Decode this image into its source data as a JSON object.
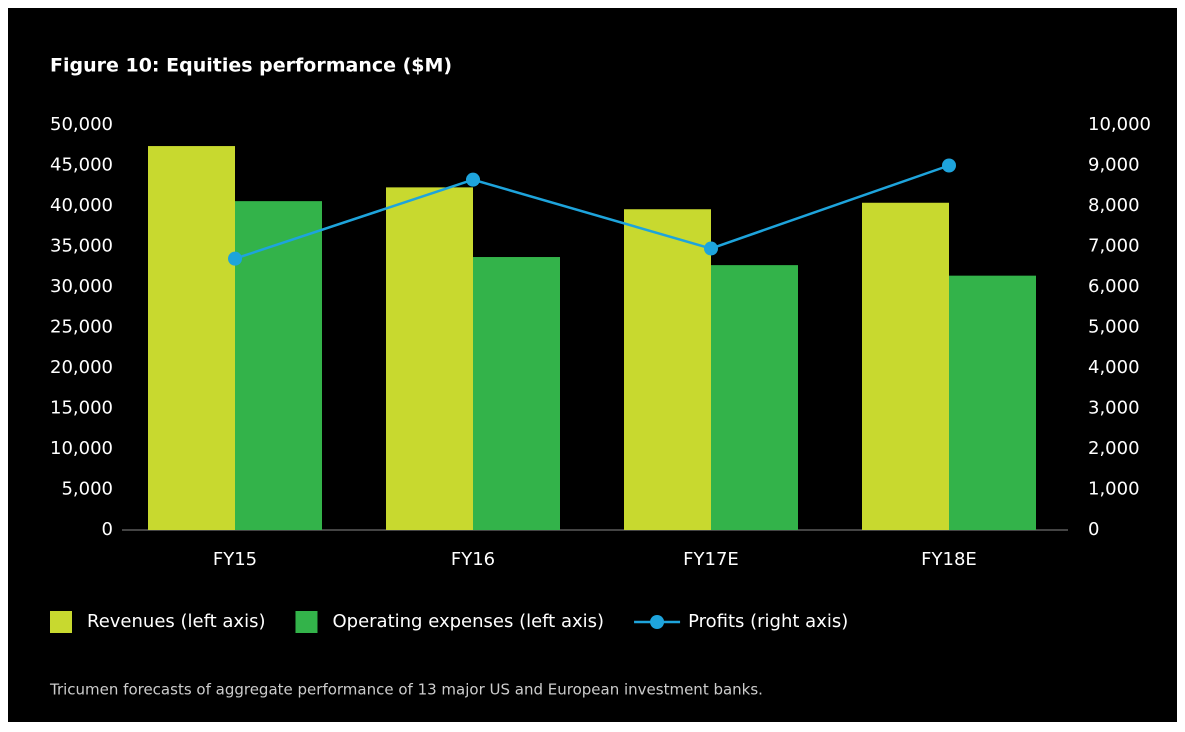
{
  "chart_data": {
    "type": "bar",
    "title": "Figure 10: Equities performance ($M)",
    "categories": [
      "FY15",
      "FY16",
      "FY17E",
      "FY18E"
    ],
    "series": [
      {
        "name": "Revenues (left axis)",
        "type": "bar",
        "color": "#c8d92f",
        "values": [
          47400,
          42300,
          39600,
          40400
        ]
      },
      {
        "name": "Operating expenses (left axis)",
        "type": "bar",
        "color": "#33b34a",
        "values": [
          40600,
          33700,
          32700,
          31400
        ]
      },
      {
        "name": "Profits (right axis)",
        "type": "line",
        "axis": "y2",
        "color": "#1ea4dc",
        "values": [
          6700,
          8650,
          6950,
          9000
        ]
      }
    ],
    "ylim": [
      0,
      50000
    ],
    "yticks": [
      0,
      {
        "value": 5000,
        "label": "5,000"
      },
      {
        "value": 10000,
        "label": "10,000"
      },
      {
        "value": 15000,
        "label": "15,000"
      },
      {
        "value": 20000,
        "label": "20,000"
      },
      {
        "value": 25000,
        "label": "25,000"
      },
      {
        "value": 30000,
        "label": "30,000"
      },
      {
        "value": 35000,
        "label": "35,000"
      },
      {
        "value": 40000,
        "label": "40,000"
      },
      {
        "value": 45000,
        "label": "45,000"
      },
      {
        "value": 50000,
        "label": "50,000"
      }
    ],
    "y2lim": [
      0,
      10000
    ],
    "y2ticks": [
      0,
      {
        "value": 1000,
        "label": "1,000"
      },
      {
        "value": 2000,
        "label": "2,000"
      },
      {
        "value": 3000,
        "label": "3,000"
      },
      {
        "value": 4000,
        "label": "4,000"
      },
      {
        "value": 5000,
        "label": "5,000"
      },
      {
        "value": 6000,
        "label": "6,000"
      },
      {
        "value": 7000,
        "label": "7,000"
      },
      {
        "value": 8000,
        "label": "8,000"
      },
      {
        "value": 9000,
        "label": "9,000"
      },
      {
        "value": 10000,
        "label": "10,000"
      }
    ],
    "grid": false,
    "legend": "bottom",
    "note": "Tricumen forecasts of aggregate performance of 13 major US and European investment banks."
  }
}
